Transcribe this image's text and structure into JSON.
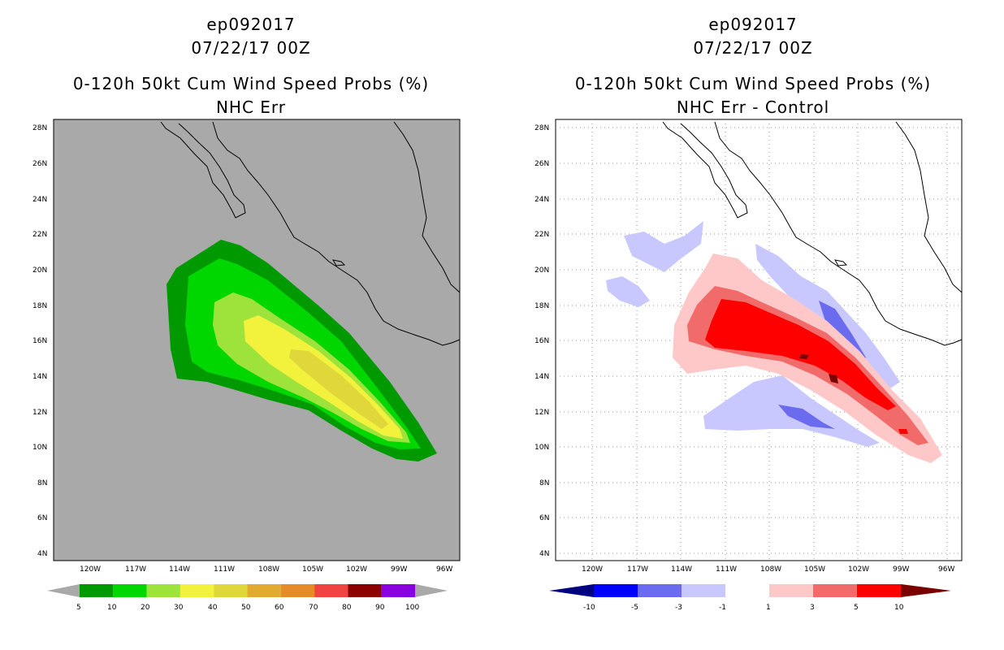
{
  "panels": [
    {
      "id": "left",
      "title_lines": [
        "ep092017",
        "07/22/17 00Z",
        "0-120h 50kt Cum Wind Speed Probs (%)",
        "NHC Err"
      ],
      "background": "#a9a9a9",
      "colorbar": {
        "labels": [
          "5",
          "10",
          "20",
          "30",
          "40",
          "50",
          "60",
          "70",
          "80",
          "90",
          "100"
        ],
        "colors": [
          "#009a00",
          "#00d600",
          "#9ee33b",
          "#f2f23c",
          "#e0d83a",
          "#e3aa32",
          "#e68a2a",
          "#f24343",
          "#8b0000",
          "#8b00e0"
        ],
        "end_colors": [
          "#a9a9a9",
          "#a9a9a9"
        ]
      }
    },
    {
      "id": "right",
      "title_lines": [
        "ep092017",
        "07/22/17 00Z",
        "0-120h 50kt Cum Wind Speed Probs (%)",
        "NHC Err - Control"
      ],
      "background": "#ffffff",
      "colorbar": {
        "labels": [
          "-10",
          "-5",
          "-3",
          "-1",
          "1",
          "3",
          "5",
          "10"
        ],
        "colors": [
          "#0000ff",
          "#6b6bf0",
          "#c8c8ff",
          "#ffffff",
          "#ffc8c8",
          "#f26b6b",
          "#ff0000"
        ],
        "end_colors": [
          "#000080",
          "#7a0000"
        ]
      }
    }
  ],
  "axes": {
    "lat_labels": [
      "28N",
      "26N",
      "24N",
      "22N",
      "20N",
      "18N",
      "16N",
      "14N",
      "12N",
      "10N",
      "8N",
      "6N",
      "4N"
    ],
    "lon_labels": [
      "120W",
      "117W",
      "114W",
      "111W",
      "108W",
      "105W",
      "102W",
      "99W",
      "96W"
    ]
  }
}
